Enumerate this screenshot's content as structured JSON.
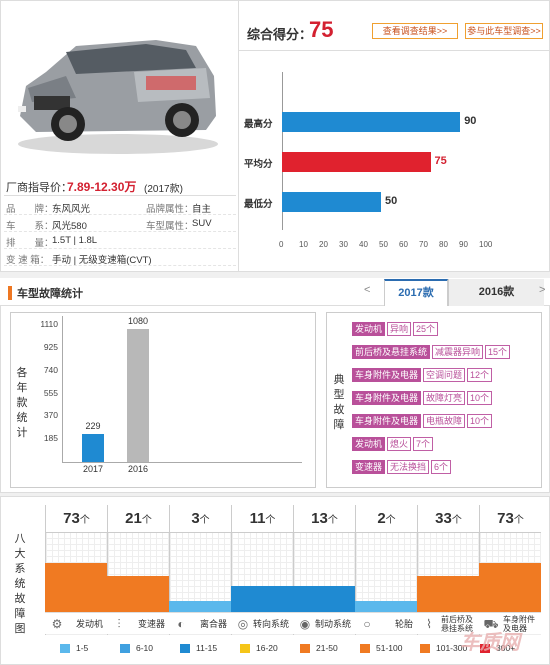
{
  "header": {
    "score_label": "综合得分：",
    "score": "75",
    "btn_results": "查看调查结果>>",
    "btn_join": "参与此车型调查>>"
  },
  "car": {
    "price_label": "厂商指导价：",
    "price": "7.89-12.30万",
    "price_year": "(2017款)",
    "specs": [
      {
        "k1": "品　　牌：",
        "v1": "东风风光",
        "k2": "品牌属性：",
        "v2": "自主"
      },
      {
        "k1": "车　　系：",
        "v1": "风光580",
        "k2": "车型属性：",
        "v2": "SUV"
      },
      {
        "k1": "排　　量：",
        "v1": "1.5T | 1.8L",
        "k2": "",
        "v2": ""
      },
      {
        "k1": "变 速 箱：",
        "v1": "手动 | 无级变速箱(CVT)",
        "k2": "",
        "v2": ""
      }
    ]
  },
  "score_chart": {
    "type": "bar",
    "categories": [
      "最高分",
      "平均分",
      "最低分"
    ],
    "values": [
      90,
      75,
      50
    ],
    "colors": [
      "#1f8ad2",
      "#e0222e",
      "#1f8ad2"
    ],
    "value_colors": [
      "#333333",
      "#d32030",
      "#333333"
    ],
    "xlim": [
      0,
      100
    ],
    "xticks": [
      "0",
      "10",
      "20",
      "30",
      "40",
      "50",
      "60",
      "70",
      "80",
      "90",
      "100"
    ]
  },
  "section2": {
    "title": "车型故障统计",
    "prev": "<",
    "next": ">",
    "tabs": [
      "2017款",
      "2016款"
    ]
  },
  "chart_data": {
    "type": "bar",
    "categories": [
      "2017",
      "2016"
    ],
    "values": [
      229,
      1080
    ],
    "colors": [
      "#1f8ad2",
      "#b8b8b8"
    ],
    "ylabel": "各年款统计",
    "yticks": [
      "1110",
      "925",
      "740",
      "555",
      "370",
      "185"
    ],
    "ylim": [
      0,
      1110
    ]
  },
  "faults": {
    "label": "典型故障",
    "items": [
      {
        "cat": "发动机",
        "sub": "异响",
        "n": "25个"
      },
      {
        "cat": "前后桥及悬挂系统",
        "sub": "减震器异响",
        "n": "15个"
      },
      {
        "cat": "车身附件及电器",
        "sub": "空调问题",
        "n": "12个"
      },
      {
        "cat": "车身附件及电器",
        "sub": "故障灯亮",
        "n": "10个"
      },
      {
        "cat": "车身附件及电器",
        "sub": "电瓶故障",
        "n": "10个"
      },
      {
        "cat": "发动机",
        "sub": "熄火",
        "n": "7个"
      },
      {
        "cat": "变速器",
        "sub": "无法换挡",
        "n": "6个"
      }
    ]
  },
  "systems": {
    "label": "八大系统故障图",
    "unit": "个",
    "items": [
      {
        "name": "发动机",
        "count": "73",
        "level": 0.62,
        "color": "#f07a22",
        "icon": "engine-icon",
        "glyph": "⚙"
      },
      {
        "name": "变速器",
        "count": "21",
        "level": 0.45,
        "color": "#f07a22",
        "icon": "gear-lever-icon",
        "glyph": "⫶"
      },
      {
        "name": "离合器",
        "count": "3",
        "level": 0.14,
        "color": "#5bb8ec",
        "icon": "clutch-icon",
        "glyph": "◐"
      },
      {
        "name": "转向系统",
        "count": "11",
        "level": 0.33,
        "color": "#1f8ad2",
        "icon": "steering-wheel-icon",
        "glyph": "◎"
      },
      {
        "name": "制动系统",
        "count": "13",
        "level": 0.33,
        "color": "#1f8ad2",
        "icon": "brake-icon",
        "glyph": "◉"
      },
      {
        "name": "轮胎",
        "count": "2",
        "level": 0.14,
        "color": "#5bb8ec",
        "icon": "tire-icon",
        "glyph": "○"
      },
      {
        "name": "前后桥及悬挂系统",
        "count": "33",
        "level": 0.45,
        "color": "#f07a22",
        "icon": "suspension-icon",
        "glyph": "⌇"
      },
      {
        "name": "车身附件及电器",
        "count": "73",
        "level": 0.62,
        "color": "#f07a22",
        "icon": "car-body-icon",
        "glyph": "⛟"
      }
    ]
  },
  "legend": [
    {
      "label": "1-5",
      "color": "#5bb8ec"
    },
    {
      "label": "6-10",
      "color": "#3fa0e0"
    },
    {
      "label": "11-15",
      "color": "#1f8ad2"
    },
    {
      "label": "16-20",
      "color": "#f5c518"
    },
    {
      "label": "21-50",
      "color": "#f07a22"
    },
    {
      "label": "51-100",
      "color": "#f07a22"
    },
    {
      "label": "101-300",
      "color": "#f07a22"
    },
    {
      "label": "300+",
      "color": "#e0222e"
    }
  ]
}
